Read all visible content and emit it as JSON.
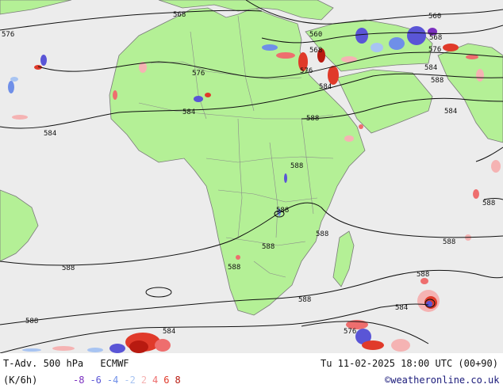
{
  "footer": {
    "title": "T-Adv. 500 hPa",
    "model": "ECMWF",
    "units": "(K/6h)",
    "datetime": "Tu 11-02-2025 18:00 UTC (00+90)",
    "credit": "©weatheronline.co.uk"
  },
  "legend": [
    {
      "label": "-8",
      "color": "#7b2fbf"
    },
    {
      "label": "-6",
      "color": "#5a55d6"
    },
    {
      "label": "-4",
      "color": "#6f8fe8"
    },
    {
      "label": "-2",
      "color": "#a8c4f2"
    },
    {
      "label": "2",
      "color": "#f5b3b3"
    },
    {
      "label": "4",
      "color": "#ee6e6e"
    },
    {
      "label": "6",
      "color": "#e03a2a"
    },
    {
      "label": "8",
      "color": "#b81a10"
    }
  ],
  "colors": {
    "land": "#b4f096",
    "sea": "#ececec",
    "contour": "#111111",
    "border": "#7a7a7a"
  },
  "contour_labels": [
    {
      "text": "568"
    },
    {
      "text": "576"
    },
    {
      "text": "560"
    },
    {
      "text": "560"
    },
    {
      "text": "568"
    },
    {
      "text": "568"
    },
    {
      "text": "576"
    },
    {
      "text": "576"
    },
    {
      "text": "576"
    },
    {
      "text": "584"
    },
    {
      "text": "584"
    },
    {
      "text": "588"
    },
    {
      "text": "584"
    },
    {
      "text": "584"
    },
    {
      "text": "588"
    },
    {
      "text": "588"
    },
    {
      "text": "584"
    },
    {
      "text": "588"
    },
    {
      "text": "588"
    },
    {
      "text": "588"
    },
    {
      "text": "588"
    },
    {
      "text": "588"
    },
    {
      "text": "588"
    },
    {
      "text": "588"
    },
    {
      "text": "588"
    },
    {
      "text": "588"
    },
    {
      "text": "584"
    },
    {
      "text": "588"
    },
    {
      "text": "584"
    },
    {
      "text": "576"
    }
  ]
}
